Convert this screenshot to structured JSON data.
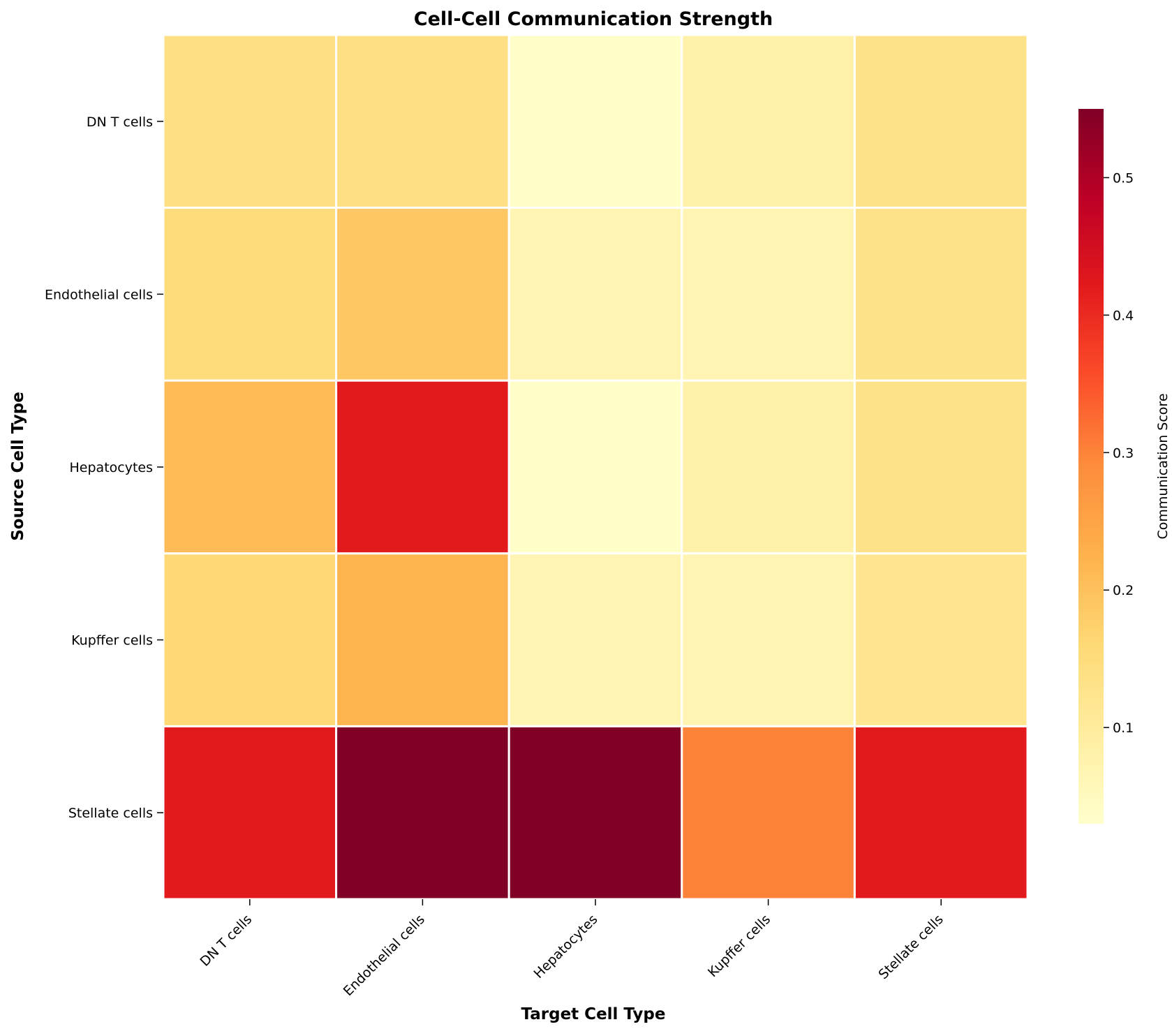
{
  "chart_data": {
    "type": "heatmap",
    "title": "Cell-Cell Communication Strength",
    "xlabel": "Target Cell Type",
    "ylabel": "Source Cell Type",
    "x_categories": [
      "DN T cells",
      "Endothelial cells",
      "Hepatocytes",
      "Kupffer cells",
      "Stellate cells"
    ],
    "y_categories": [
      "DN T cells",
      "Endothelial cells",
      "Hepatocytes",
      "Kupffer cells",
      "Stellate cells"
    ],
    "values": [
      [
        0.14,
        0.14,
        0.035,
        0.08,
        0.13
      ],
      [
        0.15,
        0.19,
        0.07,
        0.07,
        0.13
      ],
      [
        0.21,
        0.42,
        0.035,
        0.08,
        0.13
      ],
      [
        0.16,
        0.22,
        0.07,
        0.07,
        0.12
      ],
      [
        0.42,
        0.55,
        0.55,
        0.3,
        0.42
      ]
    ],
    "colorbar": {
      "label": "Communication Score",
      "min": 0.03,
      "max": 0.55,
      "ticks": [
        0.1,
        0.2,
        0.3,
        0.4,
        0.5
      ],
      "colormap": "YlOrRd"
    },
    "grid": false
  }
}
